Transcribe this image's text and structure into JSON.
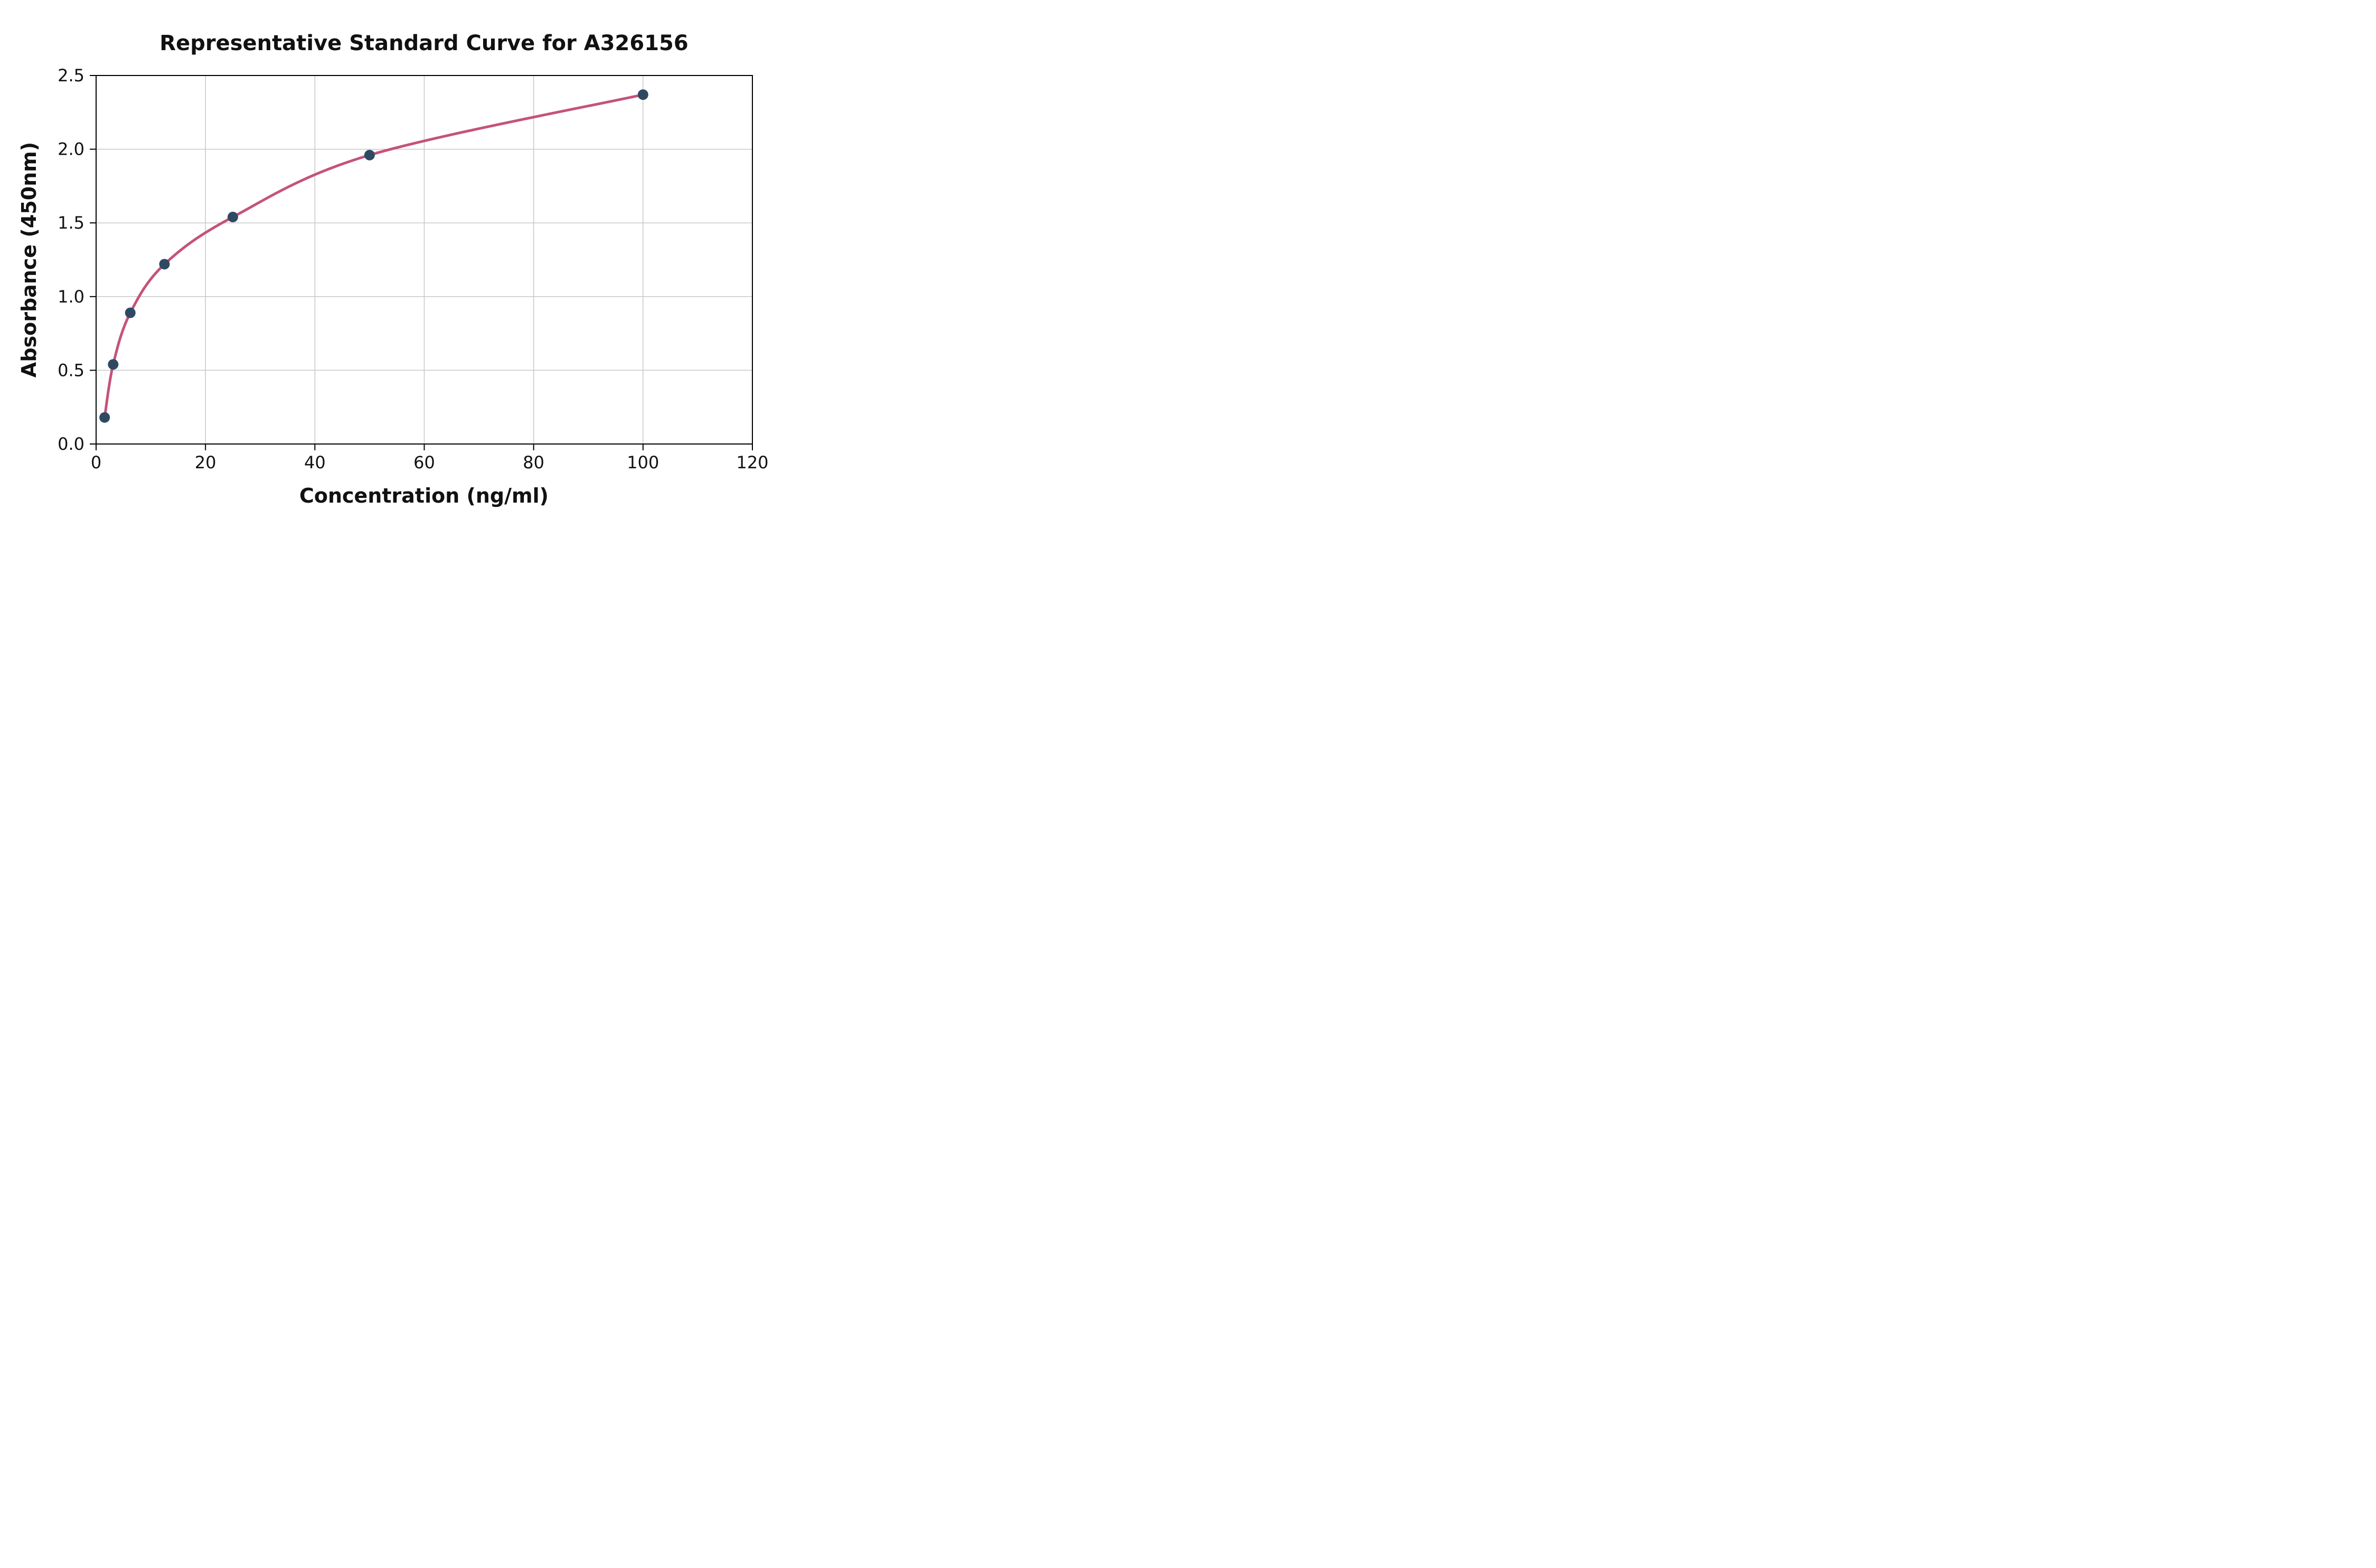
{
  "chart_data": {
    "type": "scatter",
    "title": "Representative Standard Curve for A326156",
    "xlabel": "Concentration (ng/ml)",
    "ylabel": "Absorbance (450nm)",
    "xlim": [
      0,
      120
    ],
    "ylim": [
      0,
      2.5
    ],
    "grid": true,
    "legend": "none",
    "series": [
      {
        "name": "standard-curve-points",
        "x": [
          1.56,
          3.12,
          6.25,
          12.5,
          25,
          50,
          100
        ],
        "y": [
          0.18,
          0.54,
          0.89,
          1.22,
          1.54,
          1.96,
          2.37
        ],
        "marker": "circle",
        "fit_line": true
      }
    ],
    "xticks": {
      "values": [
        0,
        20,
        40,
        60,
        80,
        100,
        120
      ],
      "labels": [
        "0",
        "20",
        "40",
        "60",
        "80",
        "100",
        "120"
      ]
    },
    "yticks": {
      "values": [
        0,
        0.5,
        1.0,
        1.5,
        2.0,
        2.5
      ],
      "labels": [
        "0.0",
        "0.5",
        "1.0",
        "1.5",
        "2.0",
        "2.5"
      ]
    },
    "colors": {
      "curve": "#c4537b",
      "marker": "#2e4a63",
      "grid": "#c8c8c8",
      "axis": "#000000",
      "background": "#ffffff"
    }
  }
}
